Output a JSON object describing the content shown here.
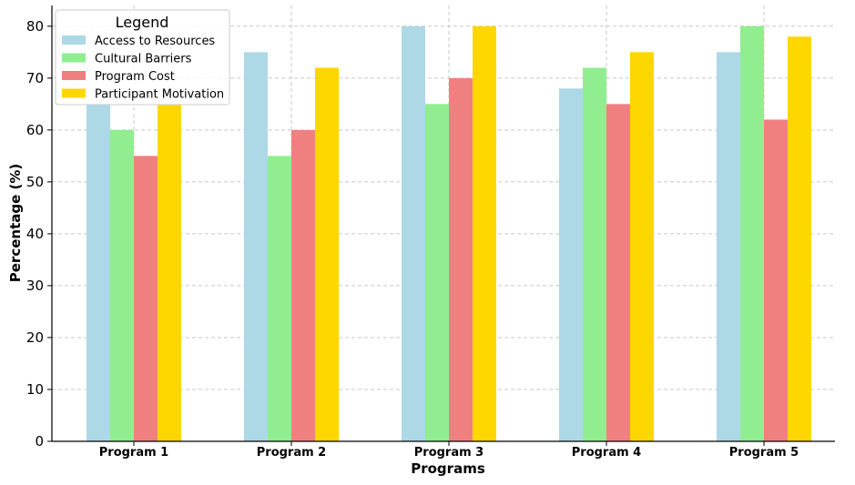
{
  "chart_data": {
    "type": "bar",
    "title": "",
    "xlabel": "Programs",
    "ylabel": "Percentage (%)",
    "categories": [
      "Program 1",
      "Program 2",
      "Program 3",
      "Program 4",
      "Program 5"
    ],
    "series": [
      {
        "name": "Access to Resources",
        "color": "#add8e6",
        "values": [
          65,
          75,
          80,
          68,
          75
        ]
      },
      {
        "name": "Cultural Barriers",
        "color": "#90ee90",
        "values": [
          60,
          55,
          65,
          72,
          80
        ]
      },
      {
        "name": "Program Cost",
        "color": "#f08080",
        "values": [
          55,
          60,
          70,
          65,
          62
        ]
      },
      {
        "name": "Participant Motivation",
        "color": "#ffd700",
        "values": [
          65,
          72,
          80,
          75,
          78
        ]
      }
    ],
    "ylim": [
      0,
      84
    ],
    "yticks": [
      0,
      10,
      20,
      30,
      40,
      50,
      60,
      70,
      80
    ],
    "grid": true,
    "legend": {
      "title": "Legend",
      "position": "top-left"
    }
  }
}
